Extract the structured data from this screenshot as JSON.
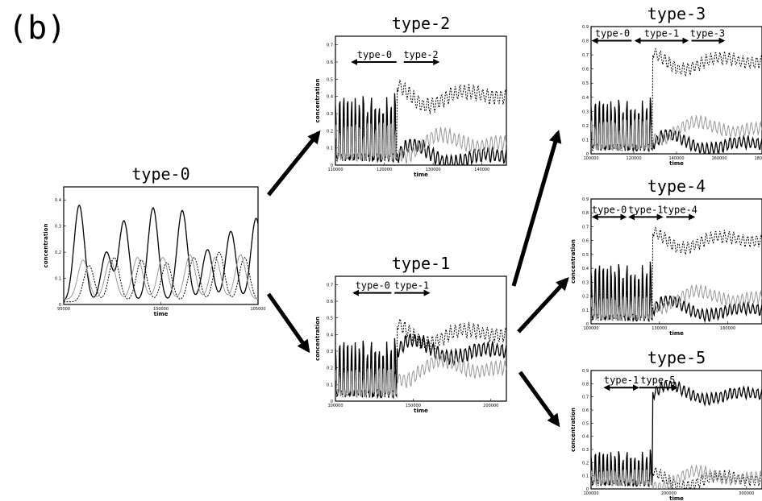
{
  "figure": {
    "panel_label": "(b)"
  },
  "chart_data": [
    {
      "id": "type-0",
      "type": "line",
      "title": "type-0",
      "xlabel": "time",
      "ylabel": "concentration",
      "xlim": [
        95000,
        105000
      ],
      "ylim": [
        0,
        0.45
      ],
      "xticks": [
        "95000",
        "100000",
        "105000"
      ],
      "yticks": [
        "0",
        "0.1",
        "0.2",
        "0.3",
        "0.4"
      ],
      "annotations": [],
      "series": [
        {
          "style": "solid",
          "color": "#000000",
          "peaks": [
            [
              95800,
              0.38
            ],
            [
              97200,
              0.2
            ],
            [
              98100,
              0.32
            ],
            [
              99600,
              0.37
            ],
            [
              101100,
              0.36
            ],
            [
              102400,
              0.21
            ],
            [
              103600,
              0.28
            ],
            [
              104900,
              0.33
            ]
          ],
          "base": 0.01
        },
        {
          "style": "dashed",
          "color": "#000000",
          "peaks": [
            [
              96300,
              0.15
            ],
            [
              97600,
              0.18
            ],
            [
              99000,
              0.17
            ],
            [
              100300,
              0.16
            ],
            [
              101700,
              0.18
            ],
            [
              103000,
              0.2
            ],
            [
              104300,
              0.18
            ]
          ],
          "base": 0.01
        },
        {
          "style": "solid",
          "color": "#999999",
          "peaks": [
            [
              96000,
              0.17
            ],
            [
              97400,
              0.17
            ],
            [
              98800,
              0.18
            ],
            [
              100100,
              0.18
            ],
            [
              101500,
              0.19
            ],
            [
              102800,
              0.18
            ],
            [
              104100,
              0.19
            ]
          ],
          "base": 0.02
        }
      ]
    },
    {
      "id": "type-2",
      "type": "line",
      "title": "type-2",
      "xlabel": "time",
      "ylabel": "concentration",
      "xlim": [
        110000,
        145000
      ],
      "ylim": [
        0,
        0.75
      ],
      "xticks": [
        "110000",
        "120000",
        "130000",
        "140000"
      ],
      "yticks": [
        "0",
        "0.1",
        "0.2",
        "0.3",
        "0.4",
        "0.5",
        "0.6",
        "0.7"
      ],
      "annotations": [
        {
          "text": "type-0",
          "from": 113500,
          "to": 122500,
          "direction": "left",
          "y": 0.6
        },
        {
          "text": "type-2",
          "from": 124000,
          "to": 131000,
          "direction": "right",
          "y": 0.6
        }
      ],
      "series": [
        {
          "style": "solid",
          "color": "#000000",
          "before_peak": 0.42,
          "after_level": 0.05
        },
        {
          "style": "dashed",
          "color": "#000000",
          "before_peak": 0.3,
          "after_level": 0.4
        },
        {
          "style": "solid",
          "color": "#999999",
          "before_peak": 0.25,
          "after_level": 0.13
        }
      ]
    },
    {
      "id": "type-1",
      "type": "line",
      "title": "type-1",
      "xlabel": "time",
      "ylabel": "concentration",
      "xlim": [
        100000,
        210000
      ],
      "ylim": [
        0,
        0.75
      ],
      "xticks": [
        "100000",
        "150000",
        "200000"
      ],
      "yticks": [
        "0",
        "0.1",
        "0.2",
        "0.3",
        "0.4",
        "0.5",
        "0.6",
        "0.7"
      ],
      "annotations": [
        {
          "text": "type-0",
          "from": 112000,
          "to": 136000,
          "direction": "left",
          "y": 0.65
        },
        {
          "text": "type-1",
          "from": 138000,
          "to": 160000,
          "direction": "right",
          "y": 0.65
        }
      ],
      "series": [
        {
          "style": "solid",
          "color": "#000000",
          "before_peak": 0.38,
          "after_level": 0.3
        },
        {
          "style": "dashed",
          "color": "#000000",
          "before_peak": 0.28,
          "after_level": 0.4
        },
        {
          "style": "solid",
          "color": "#999999",
          "before_peak": 0.2,
          "after_level": 0.2
        }
      ]
    },
    {
      "id": "type-3",
      "type": "line",
      "title": "type-3",
      "xlabel": "time",
      "ylabel": "",
      "xlim": [
        100000,
        180000
      ],
      "ylim": [
        0,
        0.9
      ],
      "xticks": [
        "100000",
        "120000",
        "140000",
        "160000",
        "180000"
      ],
      "yticks": [
        "0",
        "0.1",
        "0.2",
        "0.3",
        "0.4",
        "0.5",
        "0.6",
        "0.7",
        "0.8",
        "0.9"
      ],
      "annotations": [
        {
          "text": "type-0",
          "from": 101000,
          "to": 119000,
          "direction": "left",
          "y": 0.8
        },
        {
          "text": "type-1",
          "from": 121000,
          "to": 145000,
          "direction": "both",
          "y": 0.8
        },
        {
          "text": "type-3",
          "from": 147000,
          "to": 162000,
          "direction": "right",
          "y": 0.8
        }
      ],
      "series": [
        {
          "style": "solid",
          "color": "#000000",
          "before_peak": 0.4,
          "after_level": 0.07
        },
        {
          "style": "dashed",
          "color": "#000000",
          "before_peak": 0.3,
          "after_level": 0.65
        },
        {
          "style": "solid",
          "color": "#999999",
          "before_peak": 0.25,
          "after_level": 0.18
        }
      ]
    },
    {
      "id": "type-4",
      "type": "line",
      "title": "type-4",
      "xlabel": "time",
      "ylabel": "concentration",
      "xlim": [
        100000,
        175000
      ],
      "ylim": [
        0,
        0.9
      ],
      "xticks": [
        "100000",
        "130000",
        "160000"
      ],
      "yticks": [
        "0",
        "0.1",
        "0.2",
        "0.3",
        "0.4",
        "0.5",
        "0.6",
        "0.7",
        "0.8",
        "0.9"
      ],
      "annotations": [
        {
          "text": "type-0",
          "from": 101000,
          "to": 115000,
          "direction": "both",
          "y": 0.77
        },
        {
          "text": "type-1",
          "from": 117000,
          "to": 131000,
          "direction": "both",
          "y": 0.77
        },
        {
          "text": "type-4",
          "from": 133000,
          "to": 145000,
          "direction": "right",
          "y": 0.77
        }
      ],
      "series": [
        {
          "style": "solid",
          "color": "#000000",
          "before_peak": 0.45,
          "after_level": 0.1
        },
        {
          "style": "dashed",
          "color": "#000000",
          "before_peak": 0.35,
          "after_level": 0.6
        },
        {
          "style": "solid",
          "color": "#999999",
          "before_peak": 0.2,
          "after_level": 0.19
        }
      ]
    },
    {
      "id": "type-5",
      "type": "line",
      "title": "type-5",
      "xlabel": "time",
      "ylabel": "concentration",
      "xlim": [
        100000,
        320000
      ],
      "ylim": [
        0,
        0.9
      ],
      "xticks": [
        "100000",
        "200000",
        "300000"
      ],
      "yticks": [
        "0",
        "0.1",
        "0.2",
        "0.3",
        "0.4",
        "0.5",
        "0.6",
        "0.7",
        "0.8",
        "0.9"
      ],
      "annotations": [
        {
          "text": "type-1",
          "from": 118000,
          "to": 160000,
          "direction": "both",
          "y": 0.77
        },
        {
          "text": "type-5",
          "from": 162000,
          "to": 210000,
          "direction": "right",
          "y": 0.77
        }
      ],
      "series": [
        {
          "style": "solid",
          "color": "#000000",
          "before_peak": 0.3,
          "after_level": 0.72
        },
        {
          "style": "dashed",
          "color": "#000000",
          "before_peak": 0.2,
          "after_level": 0.07
        },
        {
          "style": "solid",
          "color": "#999999",
          "before_peak": 0.15,
          "after_level": 0.09
        }
      ]
    }
  ]
}
